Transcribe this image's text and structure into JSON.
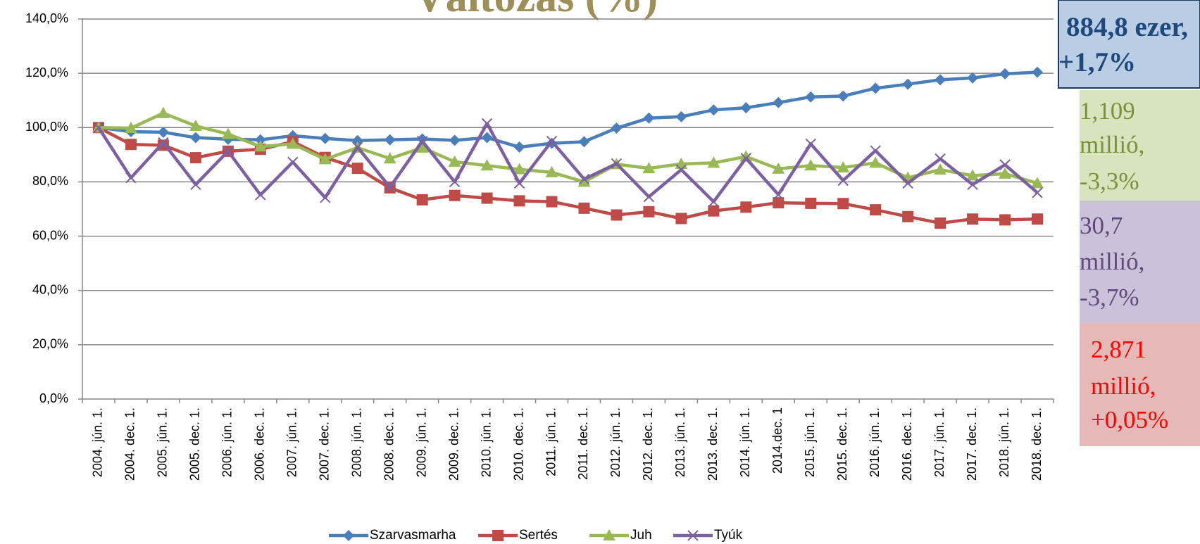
{
  "chart_data": {
    "type": "line",
    "title": "Változás (%)",
    "categories": [
      "2004. jún. 1.",
      "2004. dec. 1.",
      "2005. jún. 1.",
      "2005. dec. 1.",
      "2006. jún. 1.",
      "2006. dec. 1.",
      "2007. jún. 1.",
      "2007. dec. 1.",
      "2008. jún. 1.",
      "2008. dec. 1.",
      "2009. jún. 1.",
      "2009. dec. 1.",
      "2010. jún. 1.",
      "2010. dec. 1.",
      "2011. jún. 1.",
      "2011. dec. 1.",
      "2012. jún. 1.",
      "2012. dec. 1.",
      "2013. jún. 1.",
      "2013. dec. 1.",
      "2014. jún. 1.",
      "2014.dec. 1",
      "2015. jún. 1.",
      "2015. dec. 1.",
      "2016. jún. 1.",
      "2016. dec. 1.",
      "2017. jún. 1.",
      "2017. dec. 1.",
      "2018. jún. 1.",
      "2018. dec. 1."
    ],
    "series": [
      {
        "name": "Szarvasmarha",
        "color": "#4a7ebb",
        "marker": "diamond",
        "values": [
          100,
          98.5,
          98.3,
          96.3,
          95.7,
          95.5,
          97,
          96,
          95.2,
          95.5,
          95.8,
          95.3,
          96.3,
          92.8,
          94.2,
          94.8,
          99.8,
          103.5,
          104,
          106.5,
          107.3,
          109.2,
          111.3,
          111.6,
          114.5,
          116,
          117.6,
          118.3,
          119.8,
          120.4
        ]
      },
      {
        "name": "Sertés",
        "color": "#be4b48",
        "marker": "square",
        "values": [
          100,
          93.8,
          93.5,
          88.9,
          91.3,
          92,
          94.8,
          89,
          85,
          77.8,
          73.4,
          75,
          74,
          73,
          72.7,
          70.3,
          67.8,
          69,
          66.5,
          69.3,
          70.7,
          72.3,
          72.1,
          72,
          69.7,
          67.2,
          64.8,
          66.3,
          66,
          66.3
        ]
      },
      {
        "name": "Juh",
        "color": "#98b954",
        "marker": "triangle",
        "values": [
          100,
          99.8,
          105.3,
          100.6,
          97.6,
          93,
          94,
          88.3,
          92.6,
          88.6,
          92.6,
          87.4,
          86,
          84.6,
          83.5,
          80,
          86.5,
          85,
          86.6,
          87,
          89.3,
          84.8,
          86,
          85.3,
          87,
          81.5,
          84.5,
          82.3,
          83,
          79.5
        ]
      },
      {
        "name": "Tyúk",
        "color": "#7d60a0",
        "marker": "x",
        "values": [
          100,
          81.5,
          94.5,
          79,
          91.3,
          75.2,
          87.3,
          74.2,
          92.8,
          78,
          95,
          80,
          101.5,
          79.5,
          95,
          81,
          86.7,
          74.5,
          84.5,
          72.7,
          88.7,
          75.3,
          94,
          80.5,
          91.5,
          79.5,
          88.5,
          79,
          86.3,
          76
        ]
      }
    ],
    "ylim": [
      0,
      140
    ],
    "yticks": [
      {
        "value": 0,
        "label": "0,0%"
      },
      {
        "value": 20,
        "label": "20,0%"
      },
      {
        "value": 40,
        "label": "40,0%"
      },
      {
        "value": 60,
        "label": "60,0%"
      },
      {
        "value": 80,
        "label": "80,0%"
      },
      {
        "value": 100,
        "label": "100,0%"
      },
      {
        "value": 120,
        "label": "120,0%"
      },
      {
        "value": 140,
        "label": "140,0%"
      }
    ],
    "grid": true,
    "legend": "bottom",
    "annotations": [
      {
        "lines": [
          "884,8 ezer,",
          "+1,7%"
        ],
        "fill": "#b9cde5",
        "color": "#1f497d"
      },
      {
        "lines": [
          "1,109",
          "millió,",
          "-3,3%"
        ],
        "fill": "#d7e4bd",
        "color": "#77933c"
      },
      {
        "lines": [
          "30,7",
          "millió,",
          "-3,7%"
        ],
        "fill": "#ccc1da",
        "color": "#604a7b"
      },
      {
        "lines": [
          "2,871",
          "millió,",
          "+0,05%"
        ],
        "fill": "#e6b9b8",
        "color": "#ff0000"
      }
    ]
  }
}
